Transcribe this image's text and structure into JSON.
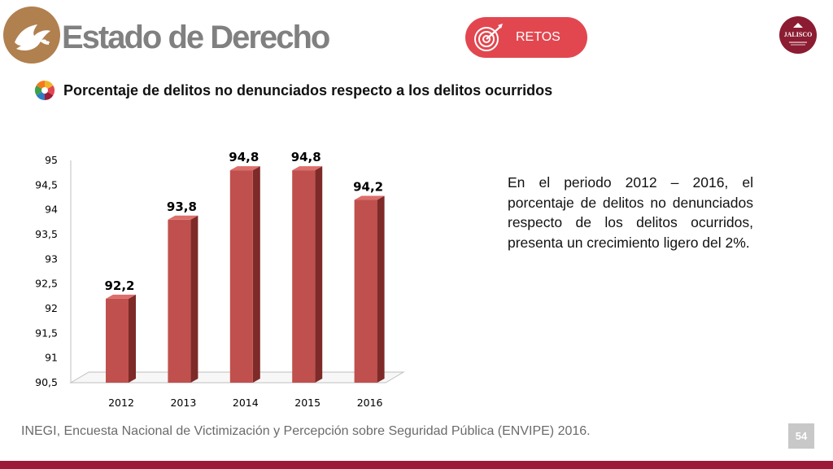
{
  "header": {
    "title": "Estado de Derecho",
    "retos_label": "RETOS",
    "badge_text": "JALISCO",
    "icons": {
      "logo": "dove-icon",
      "retos": "target-icon",
      "badge": "coat-of-arms-icon",
      "subtitle": "color-segments-icon"
    },
    "colors": {
      "logo_bg": "#b0804f",
      "retos_bg": "#e2474f",
      "badge_bg": "#8c1c32"
    }
  },
  "subtitle": "Porcentaje de delitos no denunciados respecto a los delitos ocurridos",
  "chart_data": {
    "type": "bar",
    "categories": [
      "2012",
      "2013",
      "2014",
      "2015",
      "2016"
    ],
    "values": [
      92.2,
      93.8,
      94.8,
      94.8,
      94.2
    ],
    "value_labels": [
      "92,2",
      "93,8",
      "94,8",
      "94,8",
      "94,2"
    ],
    "ylim": [
      90.5,
      95
    ],
    "yticks": [
      90.5,
      91,
      91.5,
      92,
      92.5,
      93,
      93.5,
      94,
      94.5,
      95
    ],
    "ytick_labels": [
      "90,5",
      "91",
      "91,5",
      "92",
      "92,5",
      "93",
      "93,5",
      "94",
      "94,5",
      "95"
    ],
    "bar_color": "#c0504d",
    "style": "3d-column",
    "grid": false,
    "legend": "none",
    "title": "",
    "xlabel": "",
    "ylabel": ""
  },
  "description": "En el periodo 2012 – 2016, el porcentaje de delitos no denunciados respecto de los delitos ocurridos, presenta un crecimiento ligero del 2%.",
  "source": "INEGI, Encuesta Nacional de Victimización y Percepción sobre Seguridad Pública (ENVIPE) 2016.",
  "page_number": "54",
  "footer_color": "#9c1b38"
}
